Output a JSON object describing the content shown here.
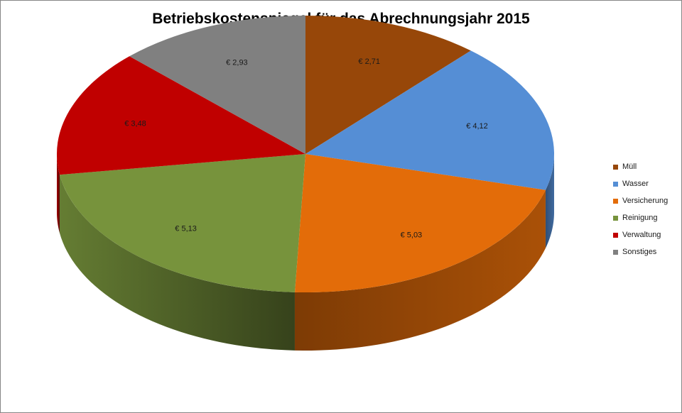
{
  "chart_data": {
    "type": "pie",
    "title": "Betriebskostenspiegel für das Abrechnungsjahr 2015",
    "categories": [
      "Müll",
      "Wasser",
      "Versicherung",
      "Reinigung",
      "Verwaltung",
      "Sonstiges"
    ],
    "values": [
      2.71,
      4.12,
      5.03,
      5.13,
      3.48,
      2.93
    ],
    "data_labels": [
      "€ 2,71",
      "€ 4,12",
      "€ 5,03",
      "€ 5,13",
      "€ 3,48",
      "€ 2,93"
    ],
    "colors": [
      "#974709",
      "#558ed5",
      "#e36c09",
      "#77933c",
      "#c00000",
      "#808080"
    ],
    "legend_position": "right",
    "style": "3d"
  }
}
